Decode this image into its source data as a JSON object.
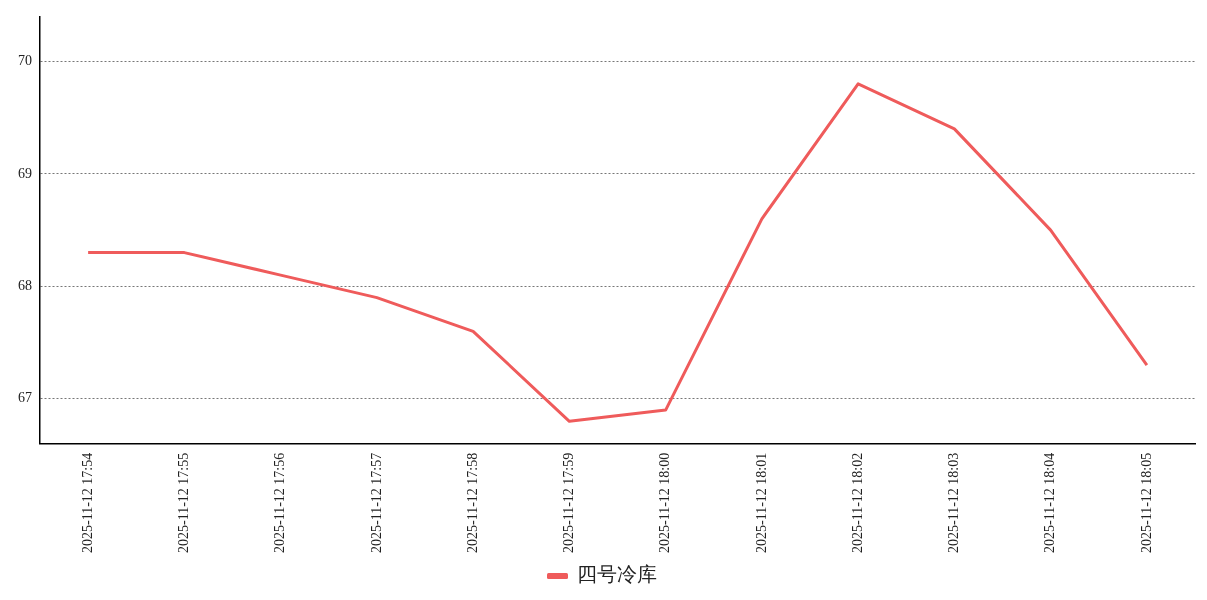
{
  "chart_data": {
    "type": "line",
    "categories": [
      "2025-11-12 17:54",
      "2025-11-12 17:55",
      "2025-11-12 17:56",
      "2025-11-12 17:57",
      "2025-11-12 17:58",
      "2025-11-12 17:59",
      "2025-11-12 18:00",
      "2025-11-12 18:01",
      "2025-11-12 18:02",
      "2025-11-12 18:03",
      "2025-11-12 18:04",
      "2025-11-12 18:05"
    ],
    "series": [
      {
        "name": "四号冷库",
        "color": "#ef5b5b",
        "values": [
          68.3,
          68.3,
          68.1,
          67.9,
          67.6,
          66.8,
          66.9,
          68.6,
          69.8,
          69.4,
          68.5,
          67.3
        ]
      }
    ],
    "ylim": [
      66.6,
      70.4
    ],
    "yticks": [
      67,
      68,
      69,
      70
    ],
    "grid": "y",
    "legend": "bottom",
    "marker": "none",
    "line_style": "solid"
  }
}
